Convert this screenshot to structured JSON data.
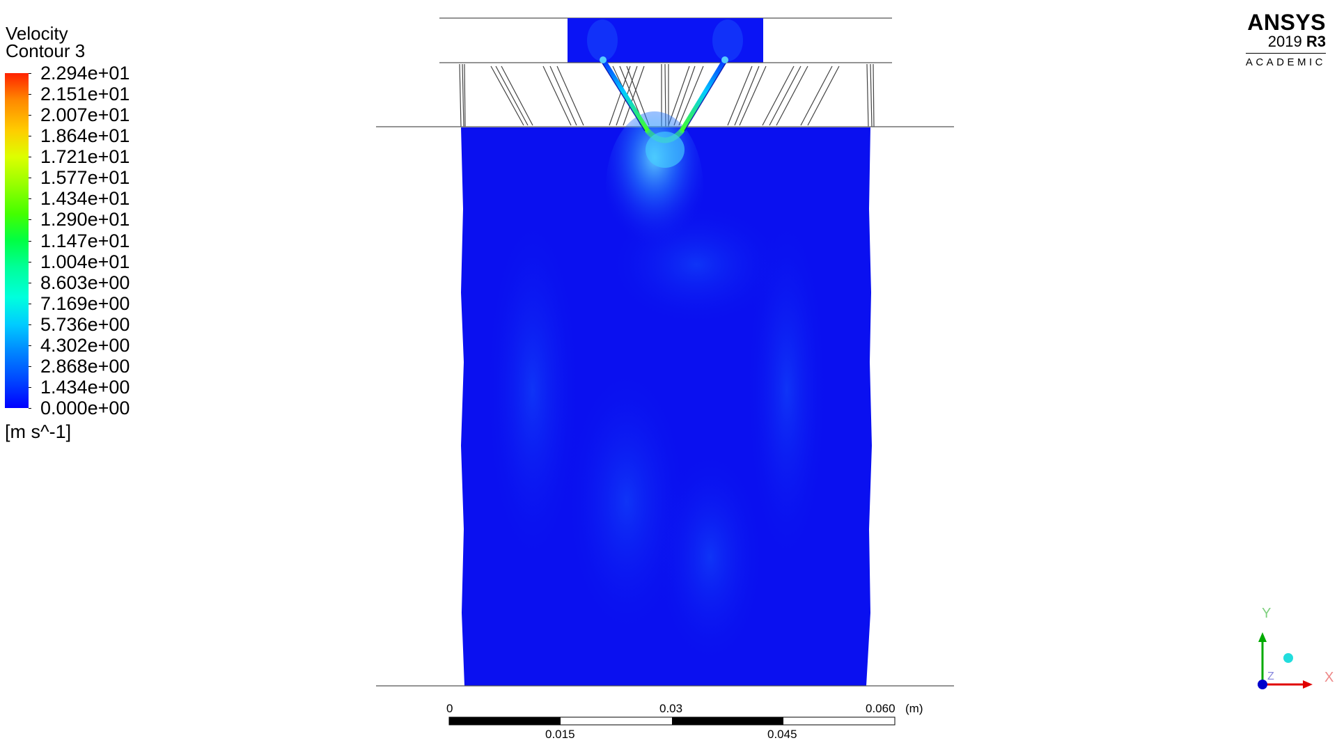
{
  "legend": {
    "title_line1": "Velocity",
    "title_line2": "Contour 3",
    "labels": [
      "2.294e+01",
      "2.151e+01",
      "2.007e+01",
      "1.864e+01",
      "1.721e+01",
      "1.577e+01",
      "1.434e+01",
      "1.290e+01",
      "1.147e+01",
      "1.004e+01",
      "8.603e+00",
      "7.169e+00",
      "5.736e+00",
      "4.302e+00",
      "2.868e+00",
      "1.434e+00",
      "0.000e+00"
    ],
    "unit": "[m s^-1]",
    "colors": {
      "max": "#ff2200",
      "min": "#0000ff"
    }
  },
  "brand": {
    "name": "ANSYS",
    "version": "2019",
    "release": "R3",
    "edition": "ACADEMIC"
  },
  "scale": {
    "top_labels": [
      "0",
      "0.03",
      "0.060"
    ],
    "unit": "(m)",
    "bottom_labels": [
      "0.015",
      "0.045"
    ]
  },
  "axes": {
    "x_label": "X",
    "y_label": "Y",
    "z_label": "Z",
    "colors": {
      "x": "#e00000",
      "y": "#00aa00",
      "z": "#0000cc"
    }
  },
  "contour": {
    "background_color": "#0a10f0",
    "jet_color": "#33ccff"
  }
}
